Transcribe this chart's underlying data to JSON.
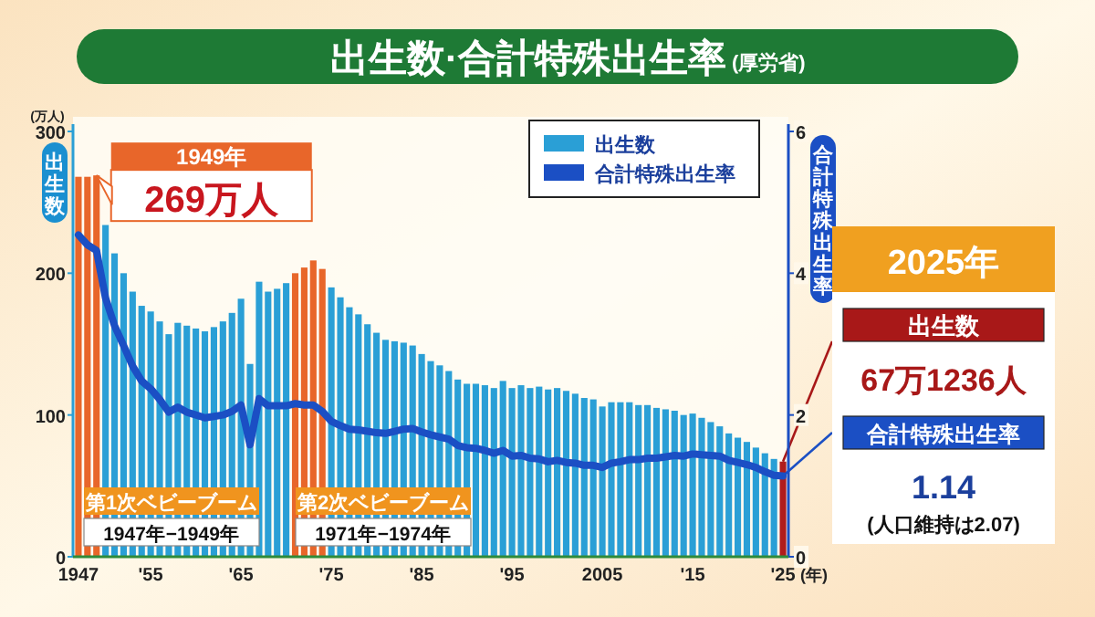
{
  "chart_data": {
    "type": "bar",
    "title": "出生数·合計特殊出生率",
    "subtitle": "(厚労省)",
    "xlabel": "(年)",
    "ylabel": "出生数",
    "y2label": "合計特殊出生率",
    "x": [
      1947,
      1948,
      1949,
      1950,
      1951,
      1952,
      1953,
      1954,
      1955,
      1956,
      1957,
      1958,
      1959,
      1960,
      1961,
      1962,
      1963,
      1964,
      1965,
      1966,
      1967,
      1968,
      1969,
      1970,
      1971,
      1972,
      1973,
      1974,
      1975,
      1976,
      1977,
      1978,
      1979,
      1980,
      1981,
      1982,
      1983,
      1984,
      1985,
      1986,
      1987,
      1988,
      1989,
      1990,
      1991,
      1992,
      1993,
      1994,
      1995,
      1996,
      1997,
      1998,
      1999,
      2000,
      2001,
      2002,
      2003,
      2004,
      2005,
      2006,
      2007,
      2008,
      2009,
      2010,
      2011,
      2012,
      2013,
      2014,
      2015,
      2016,
      2017,
      2018,
      2019,
      2020,
      2021,
      2022,
      2023,
      2024,
      2025
    ],
    "xlim": [
      1946.4,
      2025.6
    ],
    "xticks": [
      1947,
      {
        "value": 1955,
        "label": "'55"
      },
      {
        "value": 1965,
        "label": "'65"
      },
      {
        "value": 1975,
        "label": "'75"
      },
      {
        "value": 1985,
        "label": "'85"
      },
      {
        "value": 1995,
        "label": "'95"
      },
      2005,
      {
        "value": 2015,
        "label": "'15"
      },
      {
        "value": 2025,
        "label": "'25"
      }
    ],
    "ylim": [
      0,
      300
    ],
    "yticks": [
      0,
      100,
      200,
      300
    ],
    "y2lim": [
      0,
      6
    ],
    "y2ticks": [
      0,
      2,
      4,
      6
    ],
    "legend": "top right",
    "series": [
      {
        "name": "出生数",
        "color": "#2a9fd6",
        "colors": [
          "#e8662a",
          "#e8662a",
          "#e8662a",
          "#2a9fd6",
          "#2a9fd6",
          "#2a9fd6",
          "#2a9fd6",
          "#2a9fd6",
          "#2a9fd6",
          "#2a9fd6",
          "#2a9fd6",
          "#2a9fd6",
          "#2a9fd6",
          "#2a9fd6",
          "#2a9fd6",
          "#2a9fd6",
          "#2a9fd6",
          "#2a9fd6",
          "#2a9fd6",
          "#2a9fd6",
          "#2a9fd6",
          "#2a9fd6",
          "#2a9fd6",
          "#2a9fd6",
          "#e8662a",
          "#e8662a",
          "#e8662a",
          "#e8662a",
          "#2a9fd6",
          "#2a9fd6",
          "#2a9fd6",
          "#2a9fd6",
          "#2a9fd6",
          "#2a9fd6",
          "#2a9fd6",
          "#2a9fd6",
          "#2a9fd6",
          "#2a9fd6",
          "#2a9fd6",
          "#2a9fd6",
          "#2a9fd6",
          "#2a9fd6",
          "#2a9fd6",
          "#2a9fd6",
          "#2a9fd6",
          "#2a9fd6",
          "#2a9fd6",
          "#2a9fd6",
          "#2a9fd6",
          "#2a9fd6",
          "#2a9fd6",
          "#2a9fd6",
          "#2a9fd6",
          "#2a9fd6",
          "#2a9fd6",
          "#2a9fd6",
          "#2a9fd6",
          "#2a9fd6",
          "#2a9fd6",
          "#2a9fd6",
          "#2a9fd6",
          "#2a9fd6",
          "#2a9fd6",
          "#2a9fd6",
          "#2a9fd6",
          "#2a9fd6",
          "#2a9fd6",
          "#2a9fd6",
          "#2a9fd6",
          "#2a9fd6",
          "#2a9fd6",
          "#2a9fd6",
          "#2a9fd6",
          "#2a9fd6",
          "#2a9fd6",
          "#2a9fd6",
          "#2a9fd6",
          "#2a9fd6",
          "#b01c1c"
        ],
        "values": [
          268,
          268,
          269,
          234,
          214,
          200,
          187,
          177,
          173,
          166,
          157,
          165,
          163,
          161,
          159,
          162,
          166,
          172,
          182,
          136,
          194,
          187,
          189,
          193,
          200,
          204,
          209,
          203,
          190,
          183,
          176,
          171,
          164,
          158,
          153,
          152,
          151,
          149,
          143,
          138,
          135,
          131,
          125,
          122,
          122,
          121,
          119,
          124,
          119,
          121,
          119,
          120,
          118,
          119,
          117,
          115,
          112,
          111,
          106,
          109,
          109,
          109,
          107,
          107,
          105,
          104,
          103,
          100,
          101,
          98,
          95,
          92,
          87,
          84,
          81,
          77,
          73,
          69,
          67.1236
        ]
      },
      {
        "type": "line",
        "name": "合計特殊出生率",
        "color": "#1b4fc4",
        "axis": "y2",
        "values": [
          4.54,
          4.4,
          4.32,
          3.65,
          3.26,
          2.98,
          2.69,
          2.48,
          2.37,
          2.22,
          2.04,
          2.11,
          2.04,
          2.0,
          1.96,
          1.98,
          2.0,
          2.05,
          2.14,
          1.58,
          2.23,
          2.13,
          2.13,
          2.13,
          2.16,
          2.14,
          2.14,
          2.05,
          1.91,
          1.85,
          1.8,
          1.79,
          1.77,
          1.75,
          1.74,
          1.77,
          1.8,
          1.81,
          1.76,
          1.72,
          1.69,
          1.66,
          1.57,
          1.54,
          1.53,
          1.5,
          1.46,
          1.5,
          1.42,
          1.43,
          1.39,
          1.38,
          1.34,
          1.36,
          1.33,
          1.32,
          1.29,
          1.29,
          1.26,
          1.32,
          1.34,
          1.37,
          1.37,
          1.39,
          1.39,
          1.41,
          1.43,
          1.42,
          1.45,
          1.44,
          1.43,
          1.42,
          1.36,
          1.33,
          1.3,
          1.26,
          1.2,
          1.15,
          1.14
        ]
      }
    ],
    "annotations": [
      "(万人)",
      "1949年",
      {
        "text": "269万人",
        "x": 1949,
        "y": 269
      },
      "第1次ベビーブーム",
      "1947年−1949年",
      "第2次ベビーブーム",
      "1971年−1974年",
      "2025年",
      "出生数",
      {
        "text": "67万1236人",
        "x": 2025,
        "y": 67.1236
      },
      "合計特殊出生率",
      "1.14",
      "(人口維持は2.07)"
    ]
  }
}
